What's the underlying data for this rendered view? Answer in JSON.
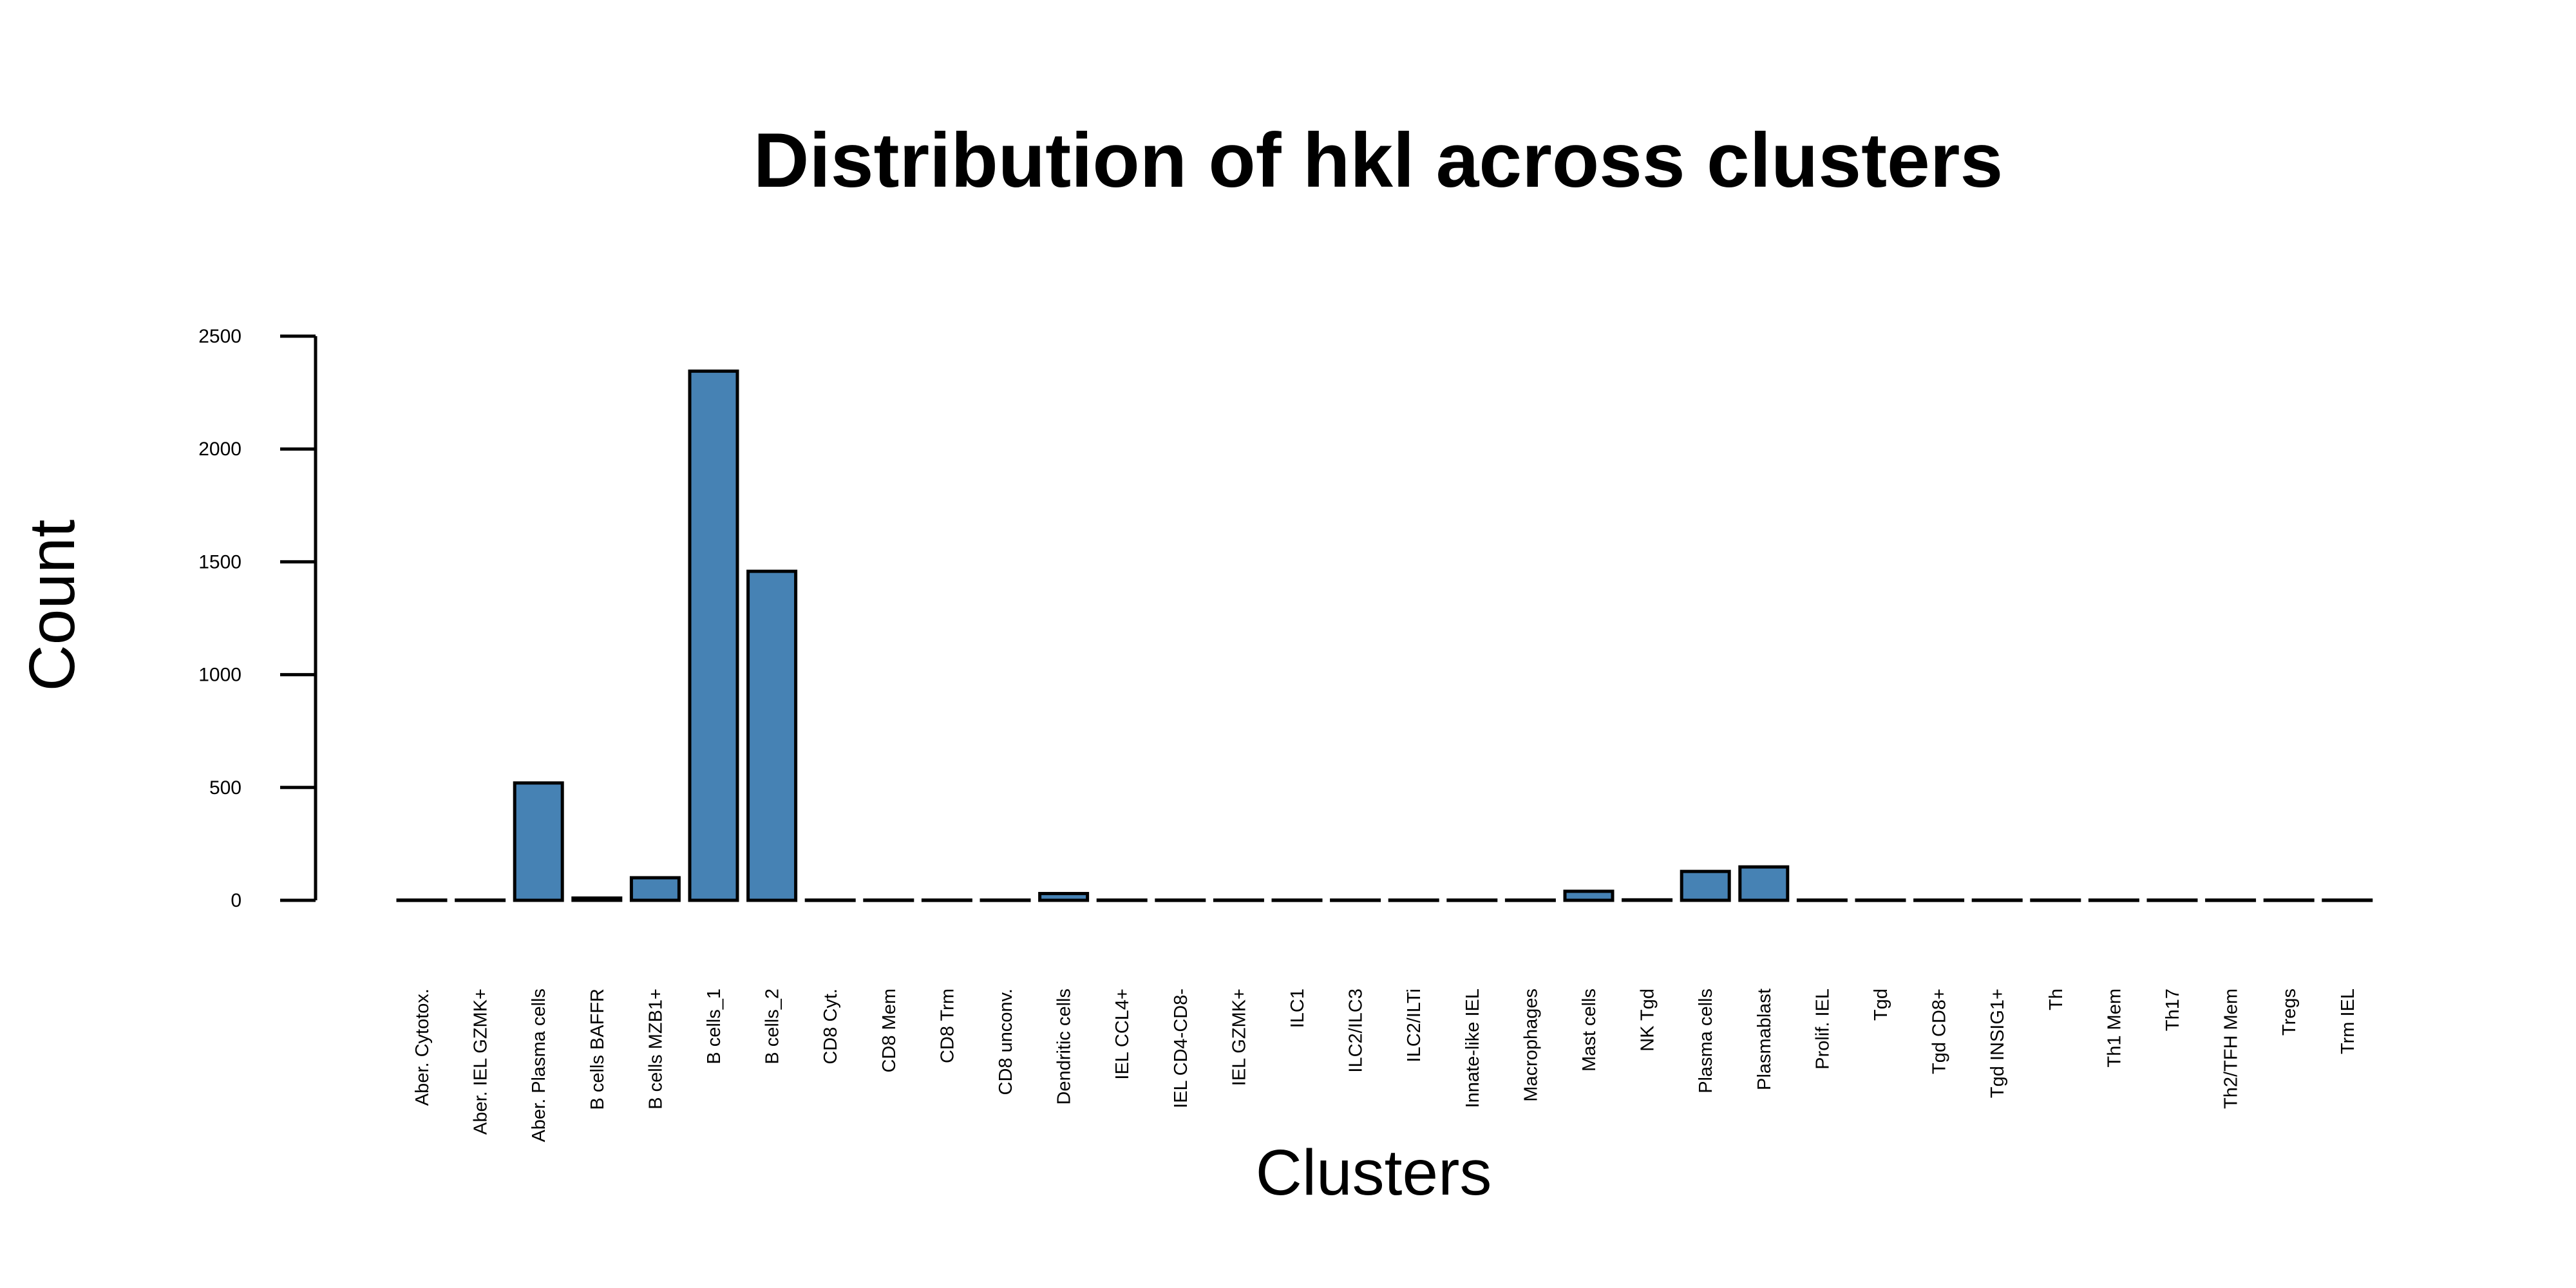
{
  "chart_data": {
    "type": "bar",
    "title": "Distribution of hkl across clusters",
    "xlabel": "Clusters",
    "ylabel": "Count",
    "ylim": [
      0,
      2500
    ],
    "yticks": [
      0,
      500,
      1000,
      1500,
      2000,
      2500
    ],
    "categories": [
      "Aber. Cytotox.",
      "Aber. IEL GZMK+",
      "Aber. Plasma cells",
      "B cells BAFFR",
      "B cells MZB1+",
      "B cells_1",
      "B cells_2",
      "CD8 Cyt.",
      "CD8 Mem",
      "CD8 Trm",
      "CD8 unconv.",
      "Dendritic cells",
      "IEL CCL4+",
      "IEL CD4-CD8-",
      "IEL GZMK+",
      "ILC1",
      "ILC2/ILC3",
      "ILC2/ILTi",
      "Innate-like IEL",
      "Macrophages",
      "Mast cells",
      "NK Tgd",
      "Plasma cells",
      "Plasmablast",
      "Prolif. IEL",
      "Tgd",
      "Tgd CD8+",
      "Tgd INSIG1+",
      "Th",
      "Th1 Mem",
      "Th17",
      "Th2/TFH Mem",
      "Tregs",
      "Trm IEL"
    ],
    "values": [
      1,
      1,
      520,
      10,
      100,
      2345,
      1458,
      1,
      1,
      1,
      1,
      30,
      1,
      1,
      1,
      1,
      1,
      1,
      1,
      1,
      40,
      2,
      128,
      148,
      1,
      1,
      1,
      1,
      1,
      1,
      1,
      1,
      1,
      1
    ],
    "bar_color": "#4682B4",
    "grid": false,
    "legend": "none"
  }
}
